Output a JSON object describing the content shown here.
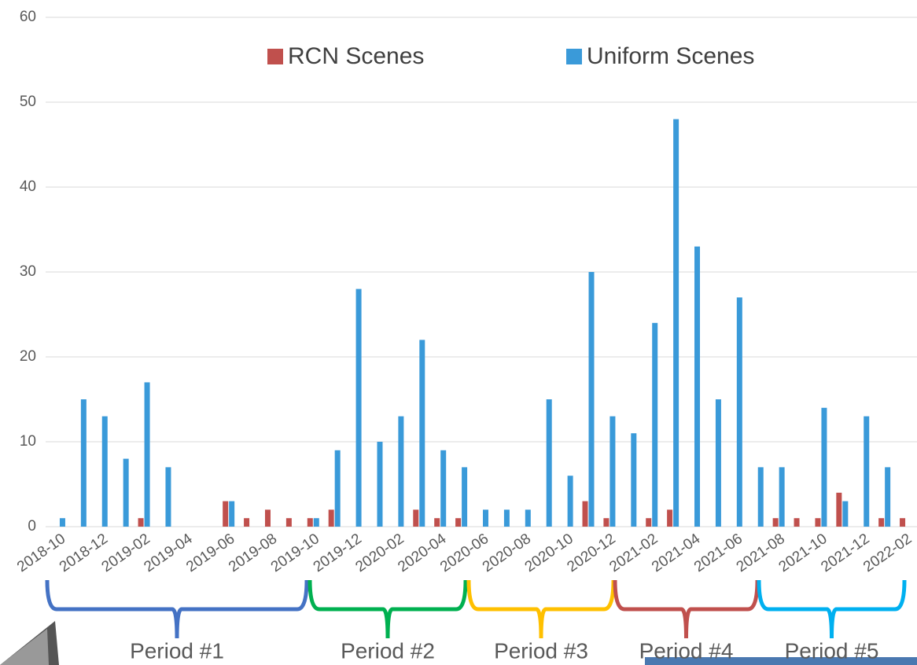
{
  "chart_data": {
    "type": "bar",
    "categories": [
      "2018-10",
      null,
      "2018-12",
      null,
      "2019-02",
      null,
      "2019-04",
      null,
      "2019-06",
      null,
      "2019-08",
      null,
      "2019-10",
      null,
      "2019-12",
      null,
      "2020-02",
      null,
      "2020-04",
      null,
      "2020-06",
      null,
      "2020-08",
      null,
      "2020-10",
      null,
      "2020-12",
      null,
      "2021-02",
      null,
      "2021-04",
      null,
      "2021-06",
      null,
      "2021-08",
      null,
      "2021-10",
      null,
      "2021-12",
      null,
      "2022-02"
    ],
    "series": [
      {
        "name": "RCN Scenes",
        "color": "#c0504d",
        "values": [
          0,
          0,
          0,
          0,
          1,
          0,
          0,
          0,
          3,
          1,
          2,
          1,
          1,
          2,
          0,
          0,
          0,
          2,
          1,
          1,
          0,
          0,
          0,
          0,
          0,
          3,
          1,
          0,
          1,
          2,
          0,
          0,
          0,
          0,
          1,
          1,
          1,
          4,
          0,
          1,
          1
        ]
      },
      {
        "name": "Uniform Scenes",
        "color": "#3a9ad9",
        "values": [
          1,
          15,
          13,
          8,
          17,
          7,
          0,
          0,
          3,
          0,
          0,
          0,
          1,
          9,
          28,
          10,
          13,
          22,
          9,
          7,
          2,
          2,
          2,
          15,
          6,
          30,
          13,
          11,
          24,
          48,
          33,
          15,
          27,
          7,
          7,
          0,
          14,
          3,
          13,
          7,
          0
        ]
      }
    ],
    "ylim": [
      0,
      60
    ],
    "yticks": [
      0,
      10,
      20,
      30,
      40,
      50,
      60
    ],
    "grid": true,
    "annotations": [
      {
        "text": "Period #1",
        "color": "#4472c4"
      },
      {
        "text": "Period #2",
        "color": "#00b050"
      },
      {
        "text": "Period #3",
        "color": "#ffc000"
      },
      {
        "text": "Period #4",
        "color": "#c0504d"
      },
      {
        "text": "Period #5",
        "color": "#00b0f0"
      }
    ]
  }
}
